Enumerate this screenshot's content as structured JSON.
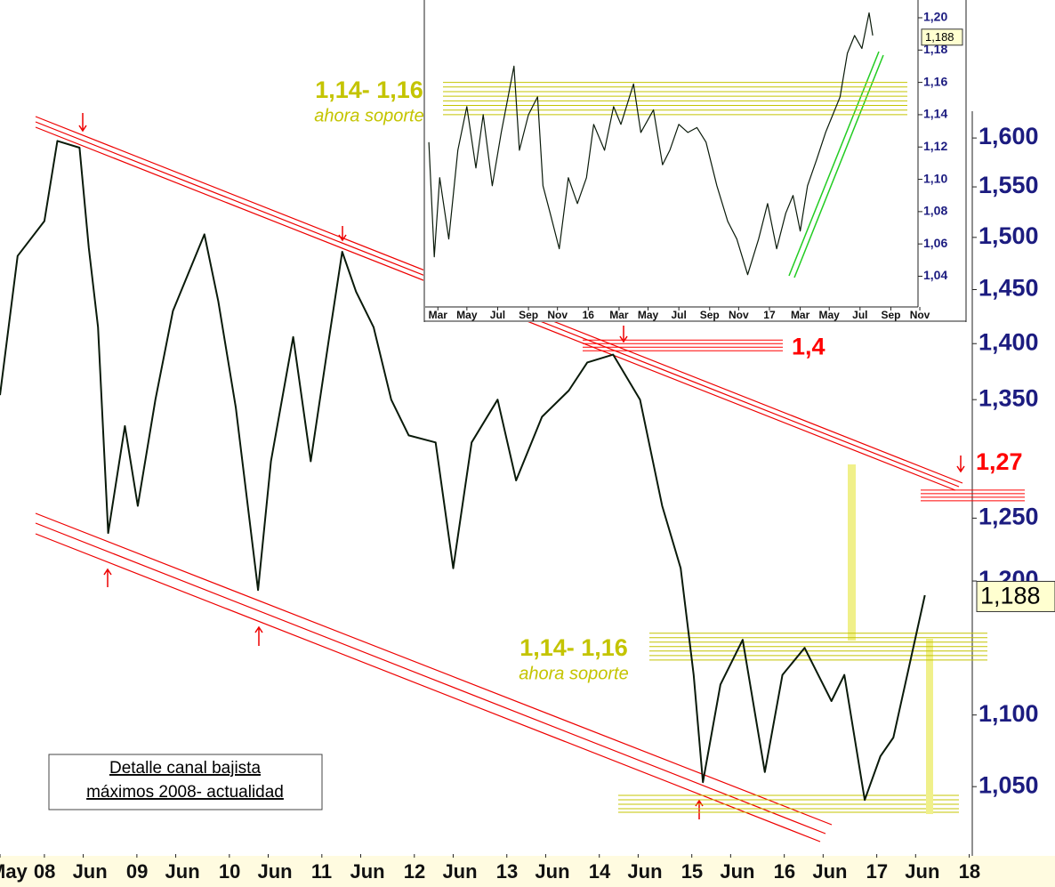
{
  "chart_data": [
    {
      "type": "line",
      "log_scale": true,
      "color": "#0a1a0a",
      "xlim": [
        2007.52,
        2018.1
      ],
      "ylim": [
        1.005,
        1.75
      ],
      "xticks": [
        {
          "value": 2007.52,
          "label": "May"
        },
        {
          "value": 2008,
          "label": "08"
        },
        {
          "value": 2008.42,
          "label": "Jun"
        },
        {
          "value": 2009,
          "label": "09"
        },
        {
          "value": 2009.42,
          "label": "Jun"
        },
        {
          "value": 2010,
          "label": "10"
        },
        {
          "value": 2010.42,
          "label": "Jun"
        },
        {
          "value": 2011,
          "label": "11"
        },
        {
          "value": 2011.42,
          "label": "Jun"
        },
        {
          "value": 2012,
          "label": "12"
        },
        {
          "value": 2012.42,
          "label": "Jun"
        },
        {
          "value": 2013,
          "label": "13"
        },
        {
          "value": 2013.42,
          "label": "Jun"
        },
        {
          "value": 2014,
          "label": "14"
        },
        {
          "value": 2014.42,
          "label": "Jun"
        },
        {
          "value": 2015,
          "label": "15"
        },
        {
          "value": 2015.42,
          "label": "Jun"
        },
        {
          "value": 2016,
          "label": "16"
        },
        {
          "value": 2016.42,
          "label": "Jun"
        },
        {
          "value": 2017,
          "label": "17"
        },
        {
          "value": 2017.42,
          "label": "Jun"
        },
        {
          "value": 2018,
          "label": "18"
        }
      ],
      "yticks": [
        {
          "value": 1.6,
          "label": "1,600"
        },
        {
          "value": 1.55,
          "label": "1,550"
        },
        {
          "value": 1.5,
          "label": "1,500"
        },
        {
          "value": 1.45,
          "label": "1,450"
        },
        {
          "value": 1.4,
          "label": "1,400"
        },
        {
          "value": 1.35,
          "label": "1,350"
        },
        {
          "value": 1.25,
          "label": "1,250"
        },
        {
          "value": 1.2,
          "label": "1,200"
        },
        {
          "value": 1.1,
          "label": "1,100"
        },
        {
          "value": 1.05,
          "label": "1,050"
        }
      ],
      "x": [
        2007.52,
        2007.71,
        2008.0,
        2008.14,
        2008.38,
        2008.48,
        2008.58,
        2008.69,
        2008.87,
        2009.01,
        2009.2,
        2009.39,
        2009.73,
        2009.88,
        2010.07,
        2010.31,
        2010.45,
        2010.69,
        2010.88,
        2011.08,
        2011.22,
        2011.37,
        2011.56,
        2011.75,
        2011.94,
        2012.23,
        2012.42,
        2012.62,
        2012.9,
        2013.1,
        2013.38,
        2013.67,
        2013.87,
        2014.15,
        2014.44,
        2014.68,
        2014.88,
        2015.02,
        2015.12,
        2015.31,
        2015.55,
        2015.79,
        2015.98,
        2016.22,
        2016.51,
        2016.65,
        2016.87,
        2017.04,
        2017.18,
        2017.33,
        2017.52
      ],
      "values": [
        1.354,
        1.482,
        1.516,
        1.597,
        1.59,
        1.49,
        1.415,
        1.238,
        1.327,
        1.26,
        1.35,
        1.43,
        1.503,
        1.439,
        1.343,
        1.193,
        1.297,
        1.406,
        1.297,
        1.406,
        1.486,
        1.448,
        1.415,
        1.35,
        1.319,
        1.313,
        1.21,
        1.313,
        1.35,
        1.281,
        1.335,
        1.358,
        1.383,
        1.39,
        1.35,
        1.26,
        1.21,
        1.129,
        1.053,
        1.122,
        1.155,
        1.06,
        1.129,
        1.149,
        1.11,
        1.129,
        1.041,
        1.071,
        1.084,
        1.129,
        1.189
      ],
      "last_value": {
        "value": 1.188,
        "label": "1,188"
      },
      "levels": [
        {
          "label": "1,4",
          "value": 1.4,
          "color": "#ff0000"
        },
        {
          "label": "1,27",
          "value": 1.27,
          "color": "#ff0000"
        }
      ],
      "bands": [
        {
          "label": "1,14- 1,16",
          "sublabel": "ahora soporte",
          "range": [
            1.14,
            1.16
          ],
          "color": "#c4c400"
        }
      ],
      "note": [
        "Detalle canal bajista",
        "máximos 2008- actualidad"
      ]
    },
    {
      "type": "line",
      "log_scale": false,
      "color": "#0a1a0a",
      "xlim": [
        2015.1,
        2017.82
      ],
      "ylim": [
        1.021,
        1.211
      ],
      "xticks": [
        {
          "value": 2015.17,
          "label": "Mar"
        },
        {
          "value": 2015.33,
          "label": "May"
        },
        {
          "value": 2015.5,
          "label": "Jul"
        },
        {
          "value": 2015.67,
          "label": "Sep"
        },
        {
          "value": 2015.83,
          "label": "Nov"
        },
        {
          "value": 2016.0,
          "label": "16"
        },
        {
          "value": 2016.17,
          "label": "Mar"
        },
        {
          "value": 2016.33,
          "label": "May"
        },
        {
          "value": 2016.5,
          "label": "Jul"
        },
        {
          "value": 2016.67,
          "label": "Sep"
        },
        {
          "value": 2016.83,
          "label": "Nov"
        },
        {
          "value": 2017.0,
          "label": "17"
        },
        {
          "value": 2017.17,
          "label": "Mar"
        },
        {
          "value": 2017.33,
          "label": "May"
        },
        {
          "value": 2017.5,
          "label": "Jul"
        },
        {
          "value": 2017.67,
          "label": "Sep"
        },
        {
          "value": 2017.83,
          "label": "Nov"
        }
      ],
      "yticks": [
        {
          "value": 1.2,
          "label": "1,20"
        },
        {
          "value": 1.18,
          "label": "1,18"
        },
        {
          "value": 1.16,
          "label": "1,16"
        },
        {
          "value": 1.14,
          "label": "1,14"
        },
        {
          "value": 1.12,
          "label": "1,12"
        },
        {
          "value": 1.1,
          "label": "1,10"
        },
        {
          "value": 1.08,
          "label": "1,08"
        },
        {
          "value": 1.06,
          "label": "1,06"
        },
        {
          "value": 1.04,
          "label": "1,04"
        }
      ],
      "x": [
        2015.12,
        2015.15,
        2015.18,
        2015.23,
        2015.28,
        2015.33,
        2015.38,
        2015.42,
        2015.47,
        2015.52,
        2015.59,
        2015.62,
        2015.67,
        2015.72,
        2015.75,
        2015.79,
        2015.84,
        2015.89,
        2015.94,
        2015.99,
        2016.03,
        2016.09,
        2016.14,
        2016.18,
        2016.25,
        2016.29,
        2016.36,
        2016.41,
        2016.45,
        2016.5,
        2016.55,
        2016.6,
        2016.65,
        2016.71,
        2016.77,
        2016.82,
        2016.88,
        2016.94,
        2016.99,
        2017.04,
        2017.09,
        2017.13,
        2017.17,
        2017.21,
        2017.26,
        2017.31,
        2017.39,
        2017.43,
        2017.47,
        2017.51,
        2017.55,
        2017.57
      ],
      "values": [
        1.123,
        1.052,
        1.101,
        1.063,
        1.118,
        1.145,
        1.107,
        1.14,
        1.096,
        1.129,
        1.17,
        1.118,
        1.14,
        1.151,
        1.096,
        1.079,
        1.057,
        1.101,
        1.085,
        1.101,
        1.134,
        1.118,
        1.145,
        1.134,
        1.159,
        1.129,
        1.143,
        1.109,
        1.118,
        1.134,
        1.129,
        1.132,
        1.123,
        1.096,
        1.074,
        1.063,
        1.041,
        1.063,
        1.085,
        1.057,
        1.079,
        1.09,
        1.068,
        1.096,
        1.112,
        1.129,
        1.151,
        1.178,
        1.189,
        1.181,
        1.203,
        1.189
      ],
      "last_value": {
        "value": 1.188,
        "label": "1,188"
      },
      "bands": [
        {
          "label": "1,14- 1,16",
          "sublabel": "ahora soporte",
          "range": [
            1.14,
            1.16
          ],
          "color": "#c4c400"
        }
      ]
    }
  ]
}
